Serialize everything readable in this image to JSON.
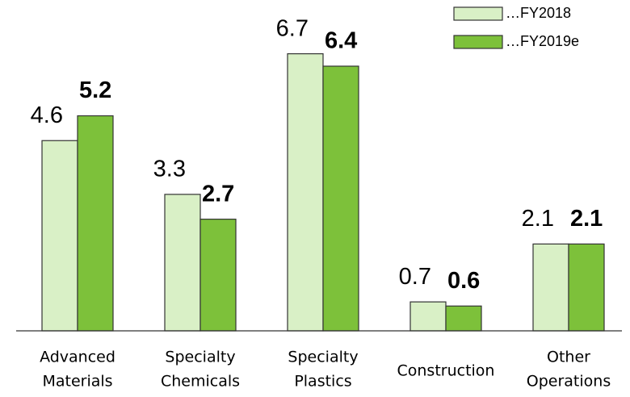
{
  "chart_data": {
    "type": "bar",
    "categories": [
      [
        "Advanced",
        "Materials"
      ],
      [
        "Specialty",
        "Chemicals"
      ],
      [
        "Specialty",
        "Plastics"
      ],
      [
        "Construction"
      ],
      [
        "Other",
        "Operations"
      ]
    ],
    "series": [
      {
        "name": "…FY2018",
        "color": "#d9f0c6",
        "values": [
          4.6,
          3.3,
          6.7,
          0.7,
          2.1
        ]
      },
      {
        "name": "…FY2019e",
        "color": "#7dc13a",
        "values": [
          5.2,
          2.7,
          6.4,
          0.6,
          2.1
        ]
      }
    ],
    "ylim": [
      0,
      8
    ],
    "legend": "top-right"
  }
}
